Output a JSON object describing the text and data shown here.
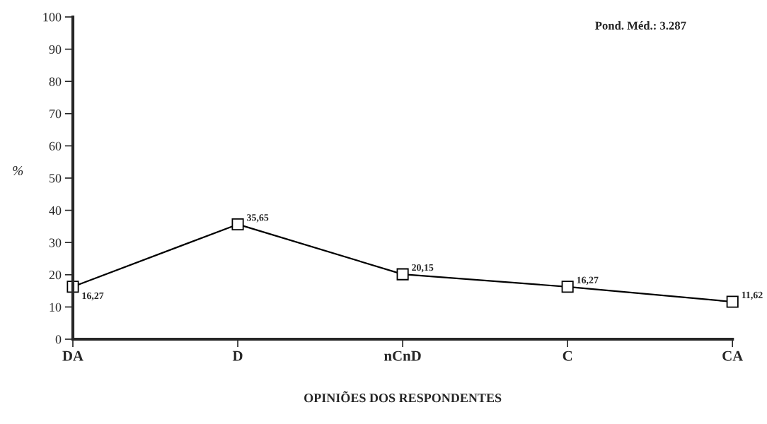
{
  "chart_data": {
    "type": "line",
    "xlabel": "OPINIÕES DOS RESPONDENTES",
    "ylabel": "%",
    "categories": [
      "DA",
      "D",
      "nCnD",
      "C",
      "CA"
    ],
    "values": [
      16.27,
      35.65,
      20.15,
      16.27,
      11.62
    ],
    "value_labels": [
      "16,27",
      "35,65",
      "20,15",
      "16,27",
      "11,62"
    ],
    "color": "#000000",
    "marker": "square",
    "line_style": "solid",
    "ylim": [
      0,
      100
    ],
    "yticks": [
      0,
      10,
      20,
      30,
      40,
      50,
      60,
      70,
      80,
      90,
      100
    ],
    "grid": false,
    "legend": false,
    "annotations": [
      "Pond. Méd.: 3.287"
    ]
  }
}
